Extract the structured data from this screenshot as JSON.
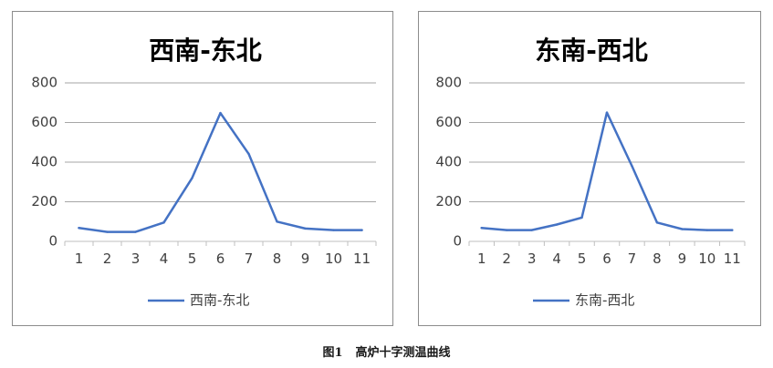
{
  "caption": {
    "figure_no": "图1",
    "text": "高炉十字测温曲线"
  },
  "colors": {
    "line": "#4472c4",
    "grid": "#a6a6a6",
    "axis": "#bfbfbf",
    "border": "#8c8c8c"
  },
  "chart_data": [
    {
      "type": "line",
      "title": "西南-东北",
      "categories": [
        "1",
        "2",
        "3",
        "4",
        "5",
        "6",
        "7",
        "8",
        "9",
        "10",
        "11"
      ],
      "series": [
        {
          "name": "西南-东北",
          "values": [
            68,
            48,
            48,
            95,
            320,
            648,
            442,
            100,
            65,
            57,
            57
          ]
        }
      ],
      "yticks": [
        "0",
        "200",
        "400",
        "600",
        "800"
      ],
      "ylim": [
        0,
        800
      ],
      "grid": "horizontal",
      "legend": "bottom"
    },
    {
      "type": "line",
      "title": "东南-西北",
      "categories": [
        "1",
        "2",
        "3",
        "4",
        "5",
        "6",
        "7",
        "8",
        "9",
        "10",
        "11"
      ],
      "series": [
        {
          "name": "东南-西北",
          "values": [
            68,
            57,
            57,
            85,
            120,
            650,
            380,
            95,
            62,
            57,
            57
          ]
        }
      ],
      "yticks": [
        "0",
        "200",
        "400",
        "600",
        "800"
      ],
      "ylim": [
        0,
        800
      ],
      "grid": "horizontal",
      "legend": "bottom"
    }
  ]
}
